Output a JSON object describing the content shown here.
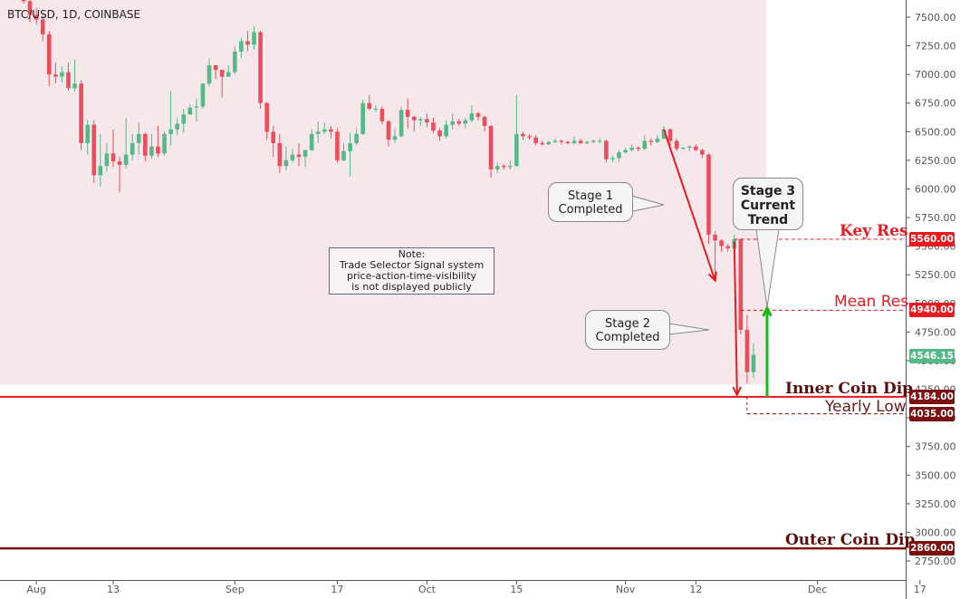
{
  "symbol": "BTC/USD, 1D, COINBASE",
  "colors": {
    "up": "#53b987",
    "down": "#eb4d5c",
    "shade": "#f6e7ea",
    "red": "#e8191f",
    "dark_red": "#7a1010",
    "green": "#18b918"
  },
  "price_axis": {
    "min": 2620,
    "max": 7640,
    "labels": [
      7500,
      7250,
      7000,
      6750,
      6500,
      6250,
      6000,
      5750,
      5500,
      5250,
      5000,
      4750,
      4500,
      4250,
      4000,
      3750,
      3500,
      3250,
      3000,
      2750
    ]
  },
  "date_axis": {
    "labels": [
      "Aug",
      "13",
      "Sep",
      "17",
      "Oct",
      "15",
      "Nov",
      "12",
      "Dec",
      "17"
    ]
  },
  "levels": [
    {
      "name": "Key Res",
      "price": 5560.0,
      "price_label": "5560.00"
    },
    {
      "name": "Mean Res",
      "price": 4940.0,
      "price_label": "4940.00"
    },
    {
      "name": "Inner Coin Dip",
      "price": 4184.0,
      "price_label": "4184.00"
    },
    {
      "name": "Yearly Low",
      "price": 4035.0,
      "price_label": "4035.00"
    },
    {
      "name": "Outer Coin Dip",
      "price": 2860.0,
      "price_label": "2860.00"
    }
  ],
  "current_price": {
    "value": 4546.15,
    "label": "4546.15"
  },
  "callouts": {
    "stage1": "Stage 1\nCompleted",
    "stage2": "Stage 2\nCompleted",
    "stage3": "Stage 3\nCurrent\nTrend"
  },
  "note": "Note:\nTrade Selector Signal system\nprice-action-time-visibility\nis not displayed publicly",
  "chart_data": {
    "type": "candlestick",
    "title": "BTC/USD, 1D, COINBASE",
    "x_start": "2018-07-30",
    "ylim": [
      2620,
      7640
    ],
    "columns": [
      "date",
      "open",
      "high",
      "low",
      "close"
    ],
    "candles": [
      [
        "2018-07-30",
        7700,
        7780,
        7620,
        7640
      ],
      [
        "2018-07-31",
        7640,
        7680,
        7460,
        7520
      ],
      [
        "2018-08-01",
        7520,
        7580,
        7440,
        7480
      ],
      [
        "2018-08-02",
        7480,
        7520,
        7290,
        7350
      ],
      [
        "2018-08-03",
        7350,
        7380,
        6900,
        7000
      ],
      [
        "2018-08-04",
        7000,
        7100,
        6920,
        6980
      ],
      [
        "2018-08-05",
        6980,
        7070,
        6930,
        7020
      ],
      [
        "2018-08-06",
        7020,
        7100,
        6860,
        6880
      ],
      [
        "2018-08-07",
        6880,
        7130,
        6850,
        6920
      ],
      [
        "2018-08-08",
        6920,
        6950,
        6340,
        6400
      ],
      [
        "2018-08-09",
        6400,
        6600,
        6300,
        6560
      ],
      [
        "2018-08-10",
        6560,
        6600,
        6050,
        6120
      ],
      [
        "2018-08-11",
        6120,
        6480,
        6020,
        6200
      ],
      [
        "2018-08-12",
        6200,
        6400,
        6150,
        6310
      ],
      [
        "2018-08-13",
        6310,
        6520,
        6190,
        6240
      ],
      [
        "2018-08-14",
        6240,
        6280,
        5970,
        6210
      ],
      [
        "2018-08-15",
        6210,
        6620,
        6180,
        6300
      ],
      [
        "2018-08-16",
        6300,
        6480,
        6250,
        6400
      ],
      [
        "2018-08-17",
        6400,
        6580,
        6300,
        6480
      ],
      [
        "2018-08-18",
        6480,
        6490,
        6240,
        6290
      ],
      [
        "2018-08-19",
        6290,
        6480,
        6260,
        6370
      ],
      [
        "2018-08-20",
        6370,
        6550,
        6280,
        6310
      ],
      [
        "2018-08-21",
        6310,
        6500,
        6290,
        6480
      ],
      [
        "2018-08-22",
        6480,
        6850,
        6380,
        6520
      ],
      [
        "2018-08-23",
        6520,
        6620,
        6470,
        6570
      ],
      [
        "2018-08-24",
        6570,
        6700,
        6490,
        6650
      ],
      [
        "2018-08-25",
        6650,
        6740,
        6650,
        6710
      ],
      [
        "2018-08-26",
        6710,
        6790,
        6590,
        6720
      ],
      [
        "2018-08-27",
        6720,
        6870,
        6700,
        6920
      ],
      [
        "2018-08-28",
        6920,
        7140,
        6900,
        7080
      ],
      [
        "2018-08-29",
        7080,
        7080,
        6960,
        7040
      ],
      [
        "2018-08-30",
        7040,
        7040,
        6800,
        6980
      ],
      [
        "2018-08-31",
        6980,
        7080,
        6980,
        7020
      ],
      [
        "2018-09-01",
        7020,
        7250,
        7000,
        7200
      ],
      [
        "2018-09-02",
        7200,
        7320,
        7140,
        7290
      ],
      [
        "2018-09-03",
        7290,
        7380,
        7200,
        7260
      ],
      [
        "2018-09-04",
        7260,
        7420,
        7220,
        7370
      ],
      [
        "2018-09-05",
        7370,
        7380,
        6700,
        6750
      ],
      [
        "2018-09-06",
        6750,
        6760,
        6430,
        6500
      ],
      [
        "2018-09-07",
        6500,
        6550,
        6280,
        6400
      ],
      [
        "2018-09-08",
        6400,
        6480,
        6140,
        6200
      ],
      [
        "2018-09-09",
        6200,
        6370,
        6160,
        6250
      ],
      [
        "2018-09-10",
        6250,
        6350,
        6230,
        6300
      ],
      [
        "2018-09-11",
        6300,
        6400,
        6200,
        6280
      ],
      [
        "2018-09-12",
        6280,
        6340,
        6190,
        6340
      ],
      [
        "2018-09-13",
        6340,
        6520,
        6330,
        6480
      ],
      [
        "2018-09-14",
        6480,
        6590,
        6400,
        6500
      ],
      [
        "2018-09-15",
        6500,
        6580,
        6480,
        6520
      ],
      [
        "2018-09-16",
        6520,
        6550,
        6440,
        6500
      ],
      [
        "2018-09-17",
        6500,
        6530,
        6230,
        6250
      ],
      [
        "2018-09-18",
        6250,
        6400,
        6240,
        6330
      ],
      [
        "2018-09-19",
        6330,
        6490,
        6110,
        6400
      ],
      [
        "2018-09-20",
        6400,
        6530,
        6380,
        6480
      ],
      [
        "2018-09-21",
        6480,
        6780,
        6470,
        6750
      ],
      [
        "2018-09-22",
        6750,
        6820,
        6690,
        6700
      ],
      [
        "2018-09-23",
        6700,
        6730,
        6670,
        6700
      ],
      [
        "2018-09-24",
        6700,
        6720,
        6560,
        6590
      ],
      [
        "2018-09-25",
        6590,
        6600,
        6370,
        6430
      ],
      [
        "2018-09-26",
        6430,
        6530,
        6400,
        6460
      ],
      [
        "2018-09-27",
        6460,
        6720,
        6450,
        6690
      ],
      [
        "2018-09-28",
        6690,
        6790,
        6530,
        6630
      ],
      [
        "2018-09-29",
        6630,
        6640,
        6500,
        6600
      ],
      [
        "2018-09-30",
        6600,
        6630,
        6550,
        6610
      ],
      [
        "2018-10-01",
        6610,
        6660,
        6540,
        6580
      ],
      [
        "2018-10-02",
        6580,
        6620,
        6490,
        6510
      ],
      [
        "2018-10-03",
        6510,
        6530,
        6420,
        6460
      ],
      [
        "2018-10-04",
        6460,
        6600,
        6440,
        6560
      ],
      [
        "2018-10-05",
        6560,
        6660,
        6520,
        6590
      ],
      [
        "2018-10-06",
        6590,
        6610,
        6550,
        6570
      ],
      [
        "2018-10-07",
        6570,
        6620,
        6530,
        6600
      ],
      [
        "2018-10-08",
        6600,
        6730,
        6580,
        6660
      ],
      [
        "2018-10-09",
        6660,
        6670,
        6600,
        6630
      ],
      [
        "2018-10-10",
        6630,
        6640,
        6500,
        6550
      ],
      [
        "2018-10-11",
        6550,
        6560,
        6100,
        6170
      ],
      [
        "2018-10-12",
        6170,
        6230,
        6140,
        6200
      ],
      [
        "2018-10-13",
        6200,
        6220,
        6170,
        6190
      ],
      [
        "2018-10-14",
        6190,
        6250,
        6170,
        6200
      ],
      [
        "2018-10-15",
        6200,
        6820,
        6190,
        6480
      ],
      [
        "2018-10-16",
        6480,
        6500,
        6430,
        6460
      ],
      [
        "2018-10-17",
        6460,
        6480,
        6430,
        6450
      ],
      [
        "2018-10-18",
        6450,
        6470,
        6380,
        6400
      ],
      [
        "2018-10-19",
        6400,
        6420,
        6380,
        6390
      ],
      [
        "2018-10-20",
        6390,
        6420,
        6380,
        6410
      ],
      [
        "2018-10-21",
        6410,
        6440,
        6400,
        6420
      ],
      [
        "2018-10-22",
        6420,
        6430,
        6390,
        6410
      ],
      [
        "2018-10-23",
        6410,
        6420,
        6390,
        6400
      ],
      [
        "2018-10-24",
        6400,
        6460,
        6390,
        6420
      ],
      [
        "2018-10-25",
        6420,
        6440,
        6390,
        6400
      ],
      [
        "2018-10-26",
        6400,
        6420,
        6390,
        6410
      ],
      [
        "2018-10-27",
        6410,
        6430,
        6400,
        6420
      ],
      [
        "2018-10-28",
        6420,
        6440,
        6400,
        6420
      ],
      [
        "2018-10-29",
        6420,
        6430,
        6230,
        6260
      ],
      [
        "2018-10-30",
        6260,
        6290,
        6230,
        6270
      ],
      [
        "2018-10-31",
        6270,
        6340,
        6240,
        6320
      ],
      [
        "2018-11-01",
        6320,
        6360,
        6310,
        6340
      ],
      [
        "2018-11-02",
        6340,
        6390,
        6330,
        6360
      ],
      [
        "2018-11-03",
        6360,
        6370,
        6330,
        6350
      ],
      [
        "2018-11-04",
        6350,
        6470,
        6340,
        6420
      ],
      [
        "2018-11-05",
        6420,
        6440,
        6380,
        6410
      ],
      [
        "2018-11-06",
        6410,
        6470,
        6400,
        6440
      ],
      [
        "2018-11-07",
        6440,
        6550,
        6430,
        6520
      ],
      [
        "2018-11-08",
        6520,
        6530,
        6380,
        6420
      ],
      [
        "2018-11-09",
        6420,
        6440,
        6330,
        6350
      ],
      [
        "2018-11-10",
        6350,
        6370,
        6340,
        6360
      ],
      [
        "2018-11-11",
        6360,
        6380,
        6330,
        6370
      ],
      [
        "2018-11-12",
        6370,
        6390,
        6330,
        6340
      ],
      [
        "2018-11-13",
        6340,
        6350,
        6270,
        6300
      ],
      [
        "2018-11-14",
        6300,
        6310,
        5520,
        5600
      ],
      [
        "2018-11-15",
        5600,
        5630,
        5200,
        5550
      ],
      [
        "2018-11-16",
        5550,
        5560,
        5450,
        5500
      ],
      [
        "2018-11-17",
        5500,
        5520,
        5450,
        5480
      ],
      [
        "2018-11-18",
        5480,
        5600,
        5460,
        5560
      ],
      [
        "2018-11-19",
        5560,
        5570,
        4730,
        4770
      ],
      [
        "2018-11-20",
        4770,
        4900,
        4300,
        4400
      ],
      [
        "2018-11-21",
        4400,
        4650,
        4350,
        4550
      ]
    ]
  }
}
